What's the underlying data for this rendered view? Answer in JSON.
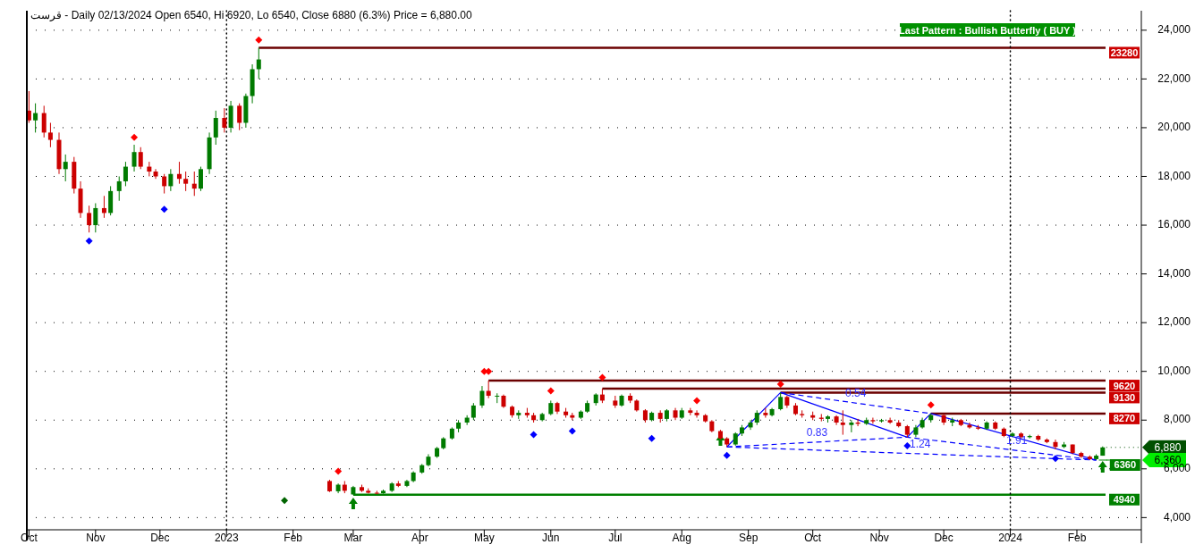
{
  "chart_data": {
    "type": "candlestick",
    "title": "قرست - Daily 02/13/2024 Open 6540, Hi 6920, Lo 6540, Close 6880 (6.3%) Price = 6,880.00",
    "x": [
      "2022-10-01",
      "2022-10-04",
      "2022-10-08",
      "2022-10-11",
      "2022-10-15",
      "2022-10-18",
      "2022-10-22",
      "2022-10-25",
      "2022-10-29",
      "2022-11-01",
      "2022-11-05",
      "2022-11-08",
      "2022-11-12",
      "2022-11-15",
      "2022-11-19",
      "2022-11-22",
      "2022-11-26",
      "2022-11-29",
      "2022-12-03",
      "2022-12-06",
      "2022-12-10",
      "2022-12-13",
      "2022-12-17",
      "2022-12-20",
      "2022-12-24",
      "2022-12-27",
      "2022-12-31",
      "2023-01-03",
      "2023-01-07",
      "2023-01-10",
      "2023-01-13",
      "2023-01-16",
      "2023-02-18",
      "2023-02-22",
      "2023-02-25",
      "2023-03-01",
      "2023-03-05",
      "2023-03-08",
      "2023-03-12",
      "2023-03-15",
      "2023-03-19",
      "2023-03-22",
      "2023-03-26",
      "2023-03-29",
      "2023-04-02",
      "2023-04-05",
      "2023-04-09",
      "2023-04-12",
      "2023-04-16",
      "2023-04-19",
      "2023-04-23",
      "2023-04-26",
      "2023-04-30",
      "2023-05-03",
      "2023-05-07",
      "2023-05-10",
      "2023-05-14",
      "2023-05-17",
      "2023-05-21",
      "2023-05-24",
      "2023-05-28",
      "2023-06-01",
      "2023-06-04",
      "2023-06-08",
      "2023-06-11",
      "2023-06-15",
      "2023-06-18",
      "2023-06-22",
      "2023-06-25",
      "2023-07-01",
      "2023-07-04",
      "2023-07-08",
      "2023-07-11",
      "2023-07-15",
      "2023-07-18",
      "2023-07-22",
      "2023-07-25",
      "2023-07-29",
      "2023-08-01",
      "2023-08-05",
      "2023-08-08",
      "2023-08-12",
      "2023-08-15",
      "2023-08-19",
      "2023-08-22",
      "2023-08-26",
      "2023-08-29",
      "2023-09-02",
      "2023-09-05",
      "2023-09-09",
      "2023-09-12",
      "2023-09-16",
      "2023-09-19",
      "2023-09-23",
      "2023-09-26",
      "2023-10-01",
      "2023-10-05",
      "2023-10-08",
      "2023-10-12",
      "2023-10-15",
      "2023-10-19",
      "2023-10-22",
      "2023-10-26",
      "2023-10-29",
      "2023-11-02",
      "2023-11-06",
      "2023-11-10",
      "2023-11-14",
      "2023-11-18",
      "2023-11-21",
      "2023-11-25",
      "2023-12-01",
      "2023-12-05",
      "2023-12-09",
      "2023-12-13",
      "2023-12-17",
      "2023-12-21",
      "2023-12-25",
      "2023-12-29",
      "2024-01-02",
      "2024-01-06",
      "2024-01-10",
      "2024-01-14",
      "2024-01-18",
      "2024-01-22",
      "2024-01-26",
      "2024-01-30",
      "2024-02-03",
      "2024-02-07",
      "2024-02-10",
      "2024-02-13"
    ],
    "ohlc": [
      [
        20700,
        21500,
        20200,
        20300
      ],
      [
        20300,
        21000,
        19800,
        20600
      ],
      [
        20600,
        20900,
        19600,
        19800
      ],
      [
        19800,
        20200,
        19200,
        19500
      ],
      [
        19500,
        19800,
        18100,
        18300
      ],
      [
        18300,
        18900,
        17800,
        18600
      ],
      [
        18600,
        18800,
        17300,
        17500
      ],
      [
        17500,
        17800,
        16300,
        16500
      ],
      [
        16500,
        16800,
        15700,
        16000
      ],
      [
        16000,
        16900,
        15700,
        16700
      ],
      [
        16700,
        17200,
        16300,
        16500
      ],
      [
        16500,
        17600,
        16400,
        17400
      ],
      [
        17400,
        18000,
        17000,
        17800
      ],
      [
        17800,
        18600,
        17600,
        18400
      ],
      [
        18400,
        19300,
        18200,
        19000
      ],
      [
        19000,
        19200,
        18300,
        18400
      ],
      [
        18400,
        18600,
        18000,
        18200
      ],
      [
        18200,
        18300,
        17900,
        18000
      ],
      [
        18000,
        18100,
        17300,
        17600
      ],
      [
        17600,
        18300,
        17400,
        18100
      ],
      [
        18100,
        18600,
        17700,
        17900
      ],
      [
        17900,
        18200,
        17400,
        17700
      ],
      [
        17700,
        18200,
        17200,
        17500
      ],
      [
        17500,
        18400,
        17400,
        18300
      ],
      [
        18300,
        19800,
        18100,
        19600
      ],
      [
        19600,
        20700,
        19300,
        20400
      ],
      [
        20400,
        20800,
        19800,
        20000
      ],
      [
        20000,
        21100,
        19800,
        20900
      ],
      [
        20900,
        21000,
        19900,
        20200
      ],
      [
        20200,
        21400,
        20000,
        21300
      ],
      [
        21300,
        22600,
        21000,
        22400
      ],
      [
        22400,
        23280,
        22000,
        22800
      ],
      [
        5500,
        5550,
        5050,
        5080
      ],
      [
        5080,
        5400,
        5000,
        5350
      ],
      [
        5350,
        5500,
        5000,
        5100
      ],
      [
        4950,
        5300,
        4940,
        5250
      ],
      [
        5250,
        5350,
        5050,
        5100
      ],
      [
        5100,
        5200,
        4990,
        5020
      ],
      [
        5020,
        5100,
        4960,
        5000
      ],
      [
        5000,
        5150,
        4980,
        5100
      ],
      [
        5100,
        5450,
        5050,
        5400
      ],
      [
        5400,
        5500,
        5250,
        5300
      ],
      [
        5300,
        5550,
        5250,
        5500
      ],
      [
        5500,
        5900,
        5450,
        5850
      ],
      [
        5850,
        6200,
        5800,
        6150
      ],
      [
        6150,
        6600,
        6100,
        6500
      ],
      [
        6500,
        6900,
        6450,
        6850
      ],
      [
        6850,
        7300,
        6800,
        7250
      ],
      [
        7250,
        7700,
        7200,
        7650
      ],
      [
        7650,
        8000,
        7500,
        7900
      ],
      [
        7900,
        8200,
        7800,
        8100
      ],
      [
        8100,
        8700,
        8000,
        8600
      ],
      [
        8600,
        9400,
        8500,
        9200
      ],
      [
        9200,
        9620,
        8900,
        9000
      ],
      [
        9000,
        9100,
        8700,
        9000
      ],
      [
        9000,
        9050,
        8500,
        8550
      ],
      [
        8550,
        8600,
        8100,
        8200
      ],
      [
        8200,
        8400,
        8050,
        8300
      ],
      [
        8300,
        8500,
        8100,
        8200
      ],
      [
        8200,
        8300,
        7900,
        8000
      ],
      [
        8000,
        8300,
        7950,
        8250
      ],
      [
        8250,
        8800,
        8200,
        8700
      ],
      [
        8700,
        8750,
        8250,
        8350
      ],
      [
        8350,
        8500,
        8100,
        8200
      ],
      [
        8200,
        8300,
        8000,
        8100
      ],
      [
        8100,
        8400,
        8050,
        8350
      ],
      [
        8350,
        8800,
        8300,
        8700
      ],
      [
        8700,
        9100,
        8600,
        9050
      ],
      [
        9050,
        9290,
        8700,
        8800
      ],
      [
        8800,
        9000,
        8500,
        8600
      ],
      [
        8600,
        9050,
        8550,
        9000
      ],
      [
        9000,
        9100,
        8700,
        8800
      ],
      [
        8800,
        8850,
        8350,
        8400
      ],
      [
        8400,
        8450,
        7900,
        8000
      ],
      [
        8000,
        8350,
        7950,
        8300
      ],
      [
        8300,
        8400,
        7900,
        8050
      ],
      [
        8050,
        8450,
        7950,
        8400
      ],
      [
        8400,
        8500,
        8000,
        8100
      ],
      [
        8100,
        8500,
        8050,
        8400
      ],
      [
        8400,
        8500,
        8200,
        8300
      ],
      [
        8300,
        8400,
        8100,
        8200
      ],
      [
        8200,
        8250,
        7900,
        7950
      ],
      [
        7950,
        8000,
        7500,
        7550
      ],
      [
        7550,
        7600,
        7200,
        7250
      ],
      [
        7250,
        7300,
        6900,
        7000
      ],
      [
        7000,
        7500,
        6950,
        7450
      ],
      [
        7450,
        7800,
        7350,
        7700
      ],
      [
        7700,
        8000,
        7600,
        7900
      ],
      [
        7900,
        8400,
        7800,
        8300
      ],
      [
        8300,
        8500,
        8100,
        8200
      ],
      [
        8200,
        8500,
        8150,
        8450
      ],
      [
        8450,
        9130,
        8400,
        8950
      ],
      [
        8950,
        9000,
        8500,
        8600
      ],
      [
        8600,
        8700,
        8200,
        8250
      ],
      [
        8250,
        8400,
        8100,
        8200
      ],
      [
        8200,
        8350,
        8000,
        8100
      ],
      [
        8100,
        8250,
        7950,
        8050
      ],
      [
        8050,
        8200,
        7900,
        8150
      ],
      [
        8150,
        8200,
        7800,
        7900
      ],
      [
        7900,
        8400,
        7400,
        7800
      ],
      [
        7800,
        8000,
        7500,
        7900
      ],
      [
        7900,
        8050,
        7750,
        7850
      ],
      [
        7850,
        8100,
        7800,
        8000
      ],
      [
        8000,
        8100,
        7850,
        7950
      ],
      [
        7950,
        8050,
        7900,
        8000
      ],
      [
        8000,
        8100,
        7850,
        7900
      ],
      [
        7900,
        8000,
        7700,
        7750
      ],
      [
        7750,
        7800,
        7300,
        7400
      ],
      [
        7400,
        7800,
        7300,
        7700
      ],
      [
        7700,
        8100,
        7650,
        8000
      ],
      [
        8000,
        8270,
        7900,
        8200
      ],
      [
        8200,
        8250,
        7800,
        7900
      ],
      [
        7900,
        8100,
        7750,
        8000
      ],
      [
        8000,
        8050,
        7750,
        7800
      ],
      [
        7800,
        7900,
        7650,
        7700
      ],
      [
        7700,
        7800,
        7600,
        7650
      ],
      [
        7650,
        7950,
        7600,
        7900
      ],
      [
        7900,
        7950,
        7600,
        7650
      ],
      [
        7650,
        7700,
        7300,
        7350
      ],
      [
        7350,
        7500,
        7300,
        7450
      ],
      [
        7450,
        7500,
        7250,
        7300
      ],
      [
        7300,
        7400,
        7250,
        7350
      ],
      [
        7350,
        7400,
        7150,
        7200
      ],
      [
        7200,
        7250,
        7050,
        7100
      ],
      [
        7100,
        7200,
        6800,
        6900
      ],
      [
        6900,
        7100,
        6850,
        7000
      ],
      [
        7000,
        7000,
        6600,
        6650
      ],
      [
        6650,
        6700,
        6450,
        6500
      ],
      [
        6500,
        6550,
        6360,
        6400
      ],
      [
        6400,
        6600,
        6360,
        6540
      ],
      [
        6540,
        6920,
        6540,
        6880
      ]
    ],
    "series": [
      {
        "type": "line",
        "color": "#0000ff",
        "line_style": "solid",
        "x": [
          "2023-08-22",
          "2023-09-16",
          "2023-11-14",
          "2023-11-25",
          "2024-02-10"
        ],
        "values": [
          6900,
          9130,
          7300,
          8270,
          6360
        ]
      },
      {
        "type": "line",
        "color": "#0000ff",
        "line_style": "dashed",
        "x": [
          "2023-08-22",
          "2023-11-14",
          "2024-02-10"
        ],
        "values": [
          6900,
          7300,
          6360
        ]
      },
      {
        "type": "line",
        "color": "#0000ff",
        "line_style": "dashed",
        "x": [
          "2023-09-16",
          "2023-11-25"
        ],
        "values": [
          9130,
          8270
        ]
      },
      {
        "type": "line",
        "color": "#0000ff",
        "line_style": "dashed",
        "x": [
          "2023-08-22",
          "2024-02-10"
        ],
        "values": [
          6900,
          6360
        ]
      },
      {
        "type": "scatter",
        "marker": "diamond",
        "color": "#ff0000",
        "x": [
          "2022-11-19",
          "2023-01-16",
          "2023-02-22",
          "2023-05-01",
          "2023-05-03",
          "2023-06-01",
          "2023-06-25",
          "2023-08-08",
          "2023-09-16",
          "2023-11-25"
        ],
        "values": [
          19600,
          23600,
          5900,
          10000,
          10000,
          9200,
          9750,
          8800,
          9480,
          8620
        ]
      },
      {
        "type": "scatter",
        "marker": "diamond",
        "color": "#0000ff",
        "x": [
          "2022-10-29",
          "2022-12-03",
          "2023-05-24",
          "2023-06-11",
          "2023-07-18",
          "2023-08-22",
          "2023-11-14",
          "2024-01-22"
        ],
        "values": [
          15350,
          16650,
          7400,
          7550,
          7250,
          6550,
          6950,
          6420
        ]
      },
      {
        "type": "scatter",
        "marker": "diamond",
        "color": "#006400",
        "x": [
          "2023-01-28"
        ],
        "values": [
          4700
        ]
      },
      {
        "type": "scatter",
        "marker": "triangle",
        "color": "#008000",
        "x": [
          "2023-03-01",
          "2023-08-19",
          "2024-02-13"
        ],
        "values": [
          4600,
          7200,
          6100
        ]
      }
    ],
    "ref_lines": [
      {
        "axis": "y",
        "value": 23280,
        "label": "23280",
        "color": "#6b0000"
      },
      {
        "axis": "y",
        "value": 9620,
        "label": "9620",
        "color": "#6b0000"
      },
      {
        "axis": "y",
        "value": 9290,
        "label": null,
        "color": "#6b0000"
      },
      {
        "axis": "y",
        "value": 9130,
        "label": "9130",
        "color": "#6b0000"
      },
      {
        "axis": "y",
        "value": 8270,
        "label": "8270",
        "color": "#6b0000"
      },
      {
        "axis": "y",
        "value": 4940,
        "label": "4940",
        "color": "#008000"
      },
      {
        "axis": "y",
        "value": 6880,
        "label": "6,880",
        "color": "#005000",
        "line_style": "dotted"
      },
      {
        "axis": "y",
        "value": 6360,
        "label": "6,360",
        "color": "#00ee00",
        "line_style": "dotted"
      },
      {
        "axis": "x",
        "value": "2023-01-01",
        "label": null,
        "color": "#000000",
        "line_style": "dotted"
      },
      {
        "axis": "x",
        "value": "2024-01-01",
        "label": null,
        "color": "#000000",
        "line_style": "dotted"
      }
    ],
    "annotations": [
      "Last Pattern : Bullish Butterfly ( BUY )",
      {
        "text": "0.54",
        "x": "2023-10-21",
        "y": 8700
      },
      {
        "text": "0.83",
        "x": "2023-10-03",
        "y": 7100
      },
      {
        "text": "1.24",
        "x": "2023-11-20",
        "y": 6617
      },
      {
        "text": "1.91",
        "x": "2024-01-04",
        "y": 6755
      },
      {
        "text": "6360",
        "x": "2024-02-10",
        "y": 6360
      }
    ],
    "xlim": [
      "2022-09-30",
      "2024-03-02"
    ],
    "xticks": [
      {
        "value": "2022-10-01",
        "label": "Oct"
      },
      {
        "value": "2022-11-01",
        "label": "Nov"
      },
      {
        "value": "2022-12-01",
        "label": "Dec"
      },
      {
        "value": "2023-01-01",
        "label": "2023"
      },
      {
        "value": "2023-02-01",
        "label": "Feb"
      },
      {
        "value": "2023-03-01",
        "label": "Mar"
      },
      {
        "value": "2023-04-01",
        "label": "Apr"
      },
      {
        "value": "2023-05-01",
        "label": "May"
      },
      {
        "value": "2023-06-01",
        "label": "Jun"
      },
      {
        "value": "2023-07-01",
        "label": "Jul"
      },
      {
        "value": "2023-08-01",
        "label": "Aug"
      },
      {
        "value": "2023-09-01",
        "label": "Sep"
      },
      {
        "value": "2023-10-01",
        "label": "Oct"
      },
      {
        "value": "2023-11-01",
        "label": "Nov"
      },
      {
        "value": "2023-12-01",
        "label": "Dec"
      },
      {
        "value": "2024-01-01",
        "label": "2024"
      },
      {
        "value": "2024-02-01",
        "label": "Feb"
      }
    ],
    "ylim": [
      3500,
      24800
    ],
    "yticks": [
      {
        "value": 4000,
        "label": "4,000"
      },
      {
        "value": 6000,
        "label": "6,000"
      },
      {
        "value": 8000,
        "label": "8,000"
      },
      {
        "value": 10000,
        "label": "10,000"
      },
      {
        "value": 12000,
        "label": "12,000"
      },
      {
        "value": 14000,
        "label": "14,000"
      },
      {
        "value": 16000,
        "label": "16,000"
      },
      {
        "value": 18000,
        "label": "18,000"
      },
      {
        "value": 20000,
        "label": "20,000"
      },
      {
        "value": 22000,
        "label": "22,000"
      },
      {
        "value": 24000,
        "label": "24,000"
      }
    ],
    "grid": "y"
  }
}
